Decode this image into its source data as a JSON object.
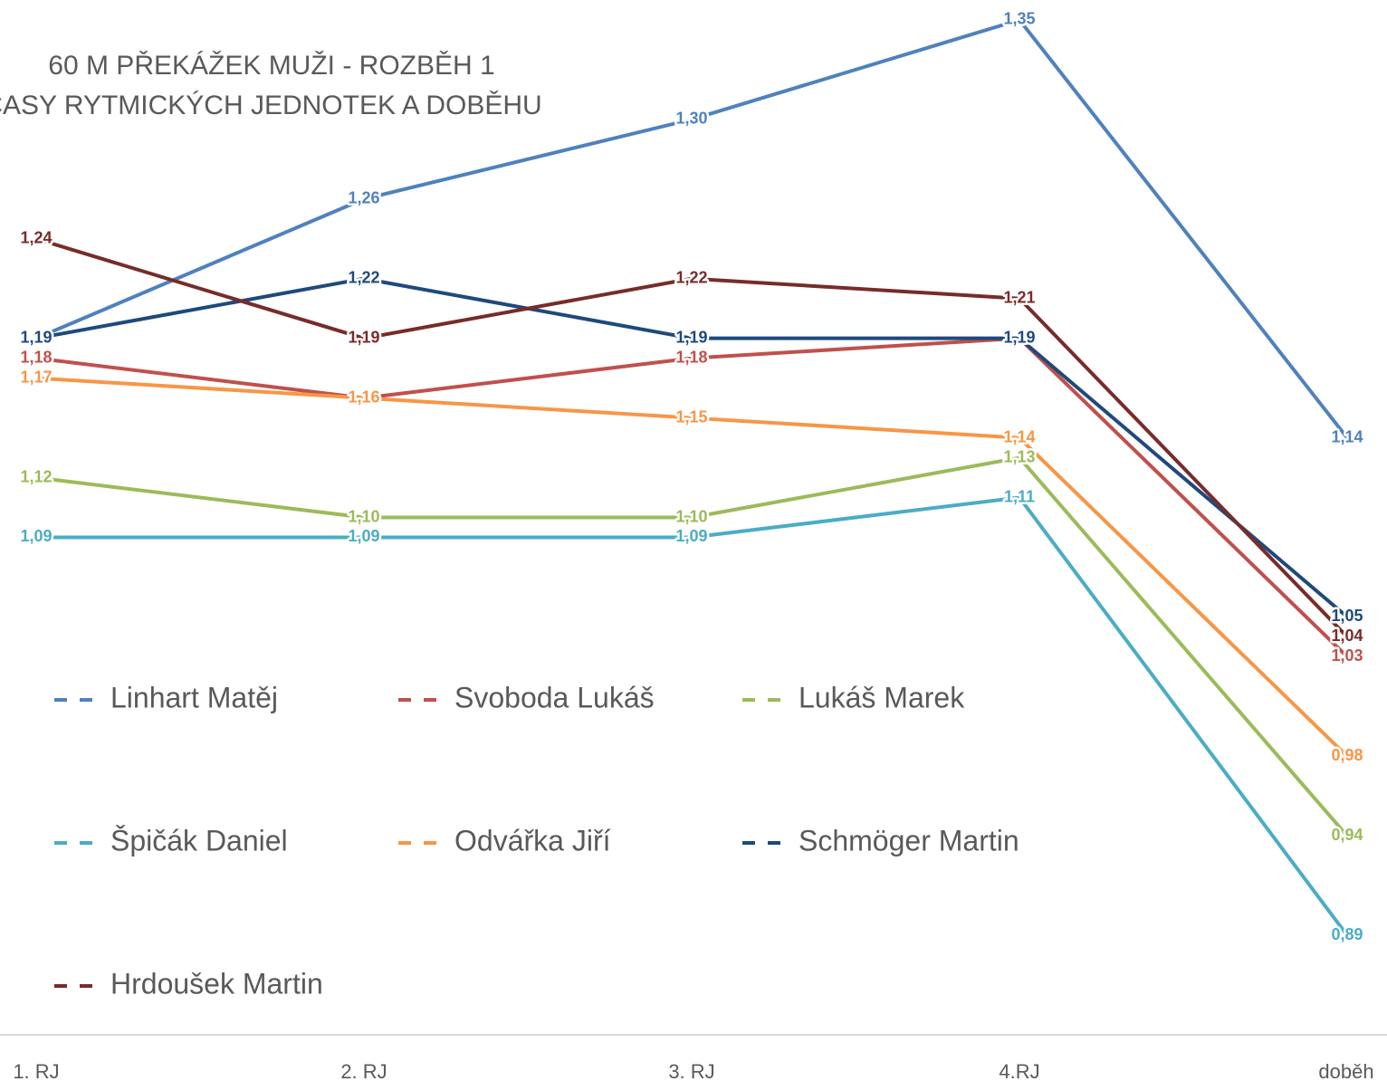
{
  "chart_data": {
    "type": "line",
    "title": "60 M PŘEKÁŽEK MUŽI - ROZBĚH 1",
    "subtitle": "ČASY RYTMICKÝCH JEDNOTEK A DOBĚHU",
    "categories": [
      "1. RJ",
      "2. RJ",
      "3. RJ",
      "4.RJ",
      "doběh"
    ],
    "ylim": [
      0.84,
      1.36
    ],
    "series": [
      {
        "name": "Linhart Matěj",
        "color": "#4f81bd",
        "values": [
          1.19,
          1.26,
          1.3,
          1.35,
          1.14
        ],
        "value_labels": [
          "1,19",
          "1,26",
          "1,30",
          "1,35",
          "1,14"
        ]
      },
      {
        "name": "Svoboda Lukáš",
        "color": "#c0504d",
        "values": [
          1.18,
          1.16,
          1.18,
          1.19,
          1.03
        ],
        "value_labels": [
          "1,18",
          "1,16",
          "1,18",
          "1,19",
          "1,03"
        ]
      },
      {
        "name": "Lukáš Marek",
        "color": "#9bbb59",
        "values": [
          1.12,
          1.1,
          1.1,
          1.13,
          0.94
        ],
        "value_labels": [
          "1,12",
          "1,10",
          "1,10",
          "1,13",
          "0,94"
        ]
      },
      {
        "name": "Špičák Daniel",
        "color": "#4bacc6",
        "values": [
          1.09,
          1.09,
          1.09,
          1.11,
          0.89
        ],
        "value_labels": [
          "1,09",
          "1,09",
          "1,09",
          "1,11",
          "0,89"
        ]
      },
      {
        "name": "Odvářka Jiří",
        "color": "#f79646",
        "values": [
          1.17,
          1.16,
          1.15,
          1.14,
          0.98
        ],
        "value_labels": [
          "1,17",
          "1,16",
          "1,15",
          "1,14",
          "0,98"
        ]
      },
      {
        "name": "Schmöger Martin",
        "color": "#1f497d",
        "values": [
          1.19,
          1.22,
          1.19,
          1.19,
          1.05
        ],
        "value_labels": [
          "1,19",
          "1,22",
          "1,19",
          "1,19",
          "1,05"
        ]
      },
      {
        "name": "Hrdoušek Martin",
        "color": "#772c2a",
        "values": [
          1.24,
          1.19,
          1.22,
          1.21,
          1.04
        ],
        "value_labels": [
          "1,24",
          "1,19",
          "1,22",
          "1,21",
          "1,04"
        ]
      }
    ]
  }
}
